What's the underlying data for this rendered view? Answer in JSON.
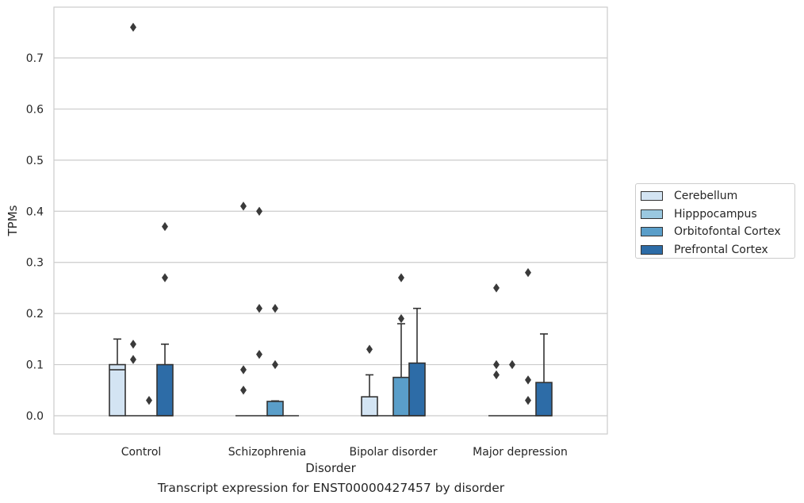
{
  "caption": "Transcript expression for ENST00000427457 by disorder",
  "chart_data": {
    "type": "boxplot",
    "xlabel": "Disorder",
    "ylabel": "TPMs",
    "ylim": [
      -0.036,
      0.8
    ],
    "yticks": [
      0.0,
      0.1,
      0.2,
      0.3,
      0.4,
      0.5,
      0.6,
      0.7
    ],
    "ytick_labels": [
      "0.0",
      "0.1",
      "0.2",
      "0.3",
      "0.4",
      "0.5",
      "0.6",
      "0.7"
    ],
    "grid": "horizontal",
    "legend_position": "right",
    "categories": [
      "Control",
      "Schizophrenia",
      "Bipolar disorder",
      "Major depression"
    ],
    "series": [
      {
        "name": "Cerebellum",
        "color": "#d3e4f3",
        "boxes": [
          {
            "q1": 0.0,
            "median": 0.09,
            "q3": 0.1,
            "whislo": 0.0,
            "whishi": 0.15,
            "fliers": []
          },
          {
            "q1": 0.0,
            "median": 0.0,
            "q3": 0.0,
            "whislo": 0.0,
            "whishi": 0.0,
            "fliers": [
              0.05,
              0.09,
              0.41
            ]
          },
          {
            "q1": 0.0,
            "median": 0.0,
            "q3": 0.037,
            "whislo": 0.0,
            "whishi": 0.08,
            "fliers": [
              0.13
            ]
          },
          {
            "q1": 0.0,
            "median": 0.0,
            "q3": 0.0,
            "whislo": 0.0,
            "whishi": 0.0,
            "fliers": [
              0.08,
              0.1,
              0.25
            ]
          }
        ]
      },
      {
        "name": "Hipppocampus",
        "color": "#9ac8e0",
        "boxes": [
          {
            "q1": 0.0,
            "median": 0.0,
            "q3": 0.0,
            "whislo": 0.0,
            "whishi": 0.0,
            "fliers": [
              0.11,
              0.14,
              0.76
            ]
          },
          {
            "q1": 0.0,
            "median": 0.0,
            "q3": 0.0,
            "whislo": 0.0,
            "whishi": 0.0,
            "fliers": [
              0.12,
              0.21,
              0.4
            ]
          },
          {
            "q1": 0.0,
            "median": 0.0,
            "q3": 0.0,
            "whislo": 0.0,
            "whishi": 0.0,
            "fliers": []
          },
          {
            "q1": 0.0,
            "median": 0.0,
            "q3": 0.0,
            "whislo": 0.0,
            "whishi": 0.0,
            "fliers": [
              0.1
            ]
          }
        ]
      },
      {
        "name": "Orbitofontal Cortex",
        "color": "#5a9ec9",
        "boxes": [
          {
            "q1": 0.0,
            "median": 0.0,
            "q3": 0.0,
            "whislo": 0.0,
            "whishi": 0.0,
            "fliers": [
              0.03
            ]
          },
          {
            "q1": 0.0,
            "median": 0.0,
            "q3": 0.028,
            "whislo": 0.0,
            "whishi": 0.029,
            "fliers": [
              0.1,
              0.21
            ]
          },
          {
            "q1": 0.0,
            "median": 0.0,
            "q3": 0.075,
            "whislo": 0.0,
            "whishi": 0.18,
            "fliers": [
              0.19,
              0.27
            ]
          },
          {
            "q1": 0.0,
            "median": 0.0,
            "q3": 0.0,
            "whislo": 0.0,
            "whishi": 0.0,
            "fliers": [
              0.03,
              0.07,
              0.28
            ]
          }
        ]
      },
      {
        "name": "Prefrontal Cortex",
        "color": "#2d6ca7",
        "boxes": [
          {
            "q1": 0.0,
            "median": 0.0,
            "q3": 0.1,
            "whislo": 0.0,
            "whishi": 0.14,
            "fliers": [
              0.27,
              0.37
            ]
          },
          {
            "q1": 0.0,
            "median": 0.0,
            "q3": 0.0,
            "whislo": 0.0,
            "whishi": 0.0,
            "fliers": []
          },
          {
            "q1": 0.0,
            "median": 0.0,
            "q3": 0.103,
            "whislo": 0.0,
            "whishi": 0.21,
            "fliers": []
          },
          {
            "q1": 0.0,
            "median": 0.0,
            "q3": 0.065,
            "whislo": 0.0,
            "whishi": 0.16,
            "fliers": []
          }
        ]
      }
    ]
  }
}
